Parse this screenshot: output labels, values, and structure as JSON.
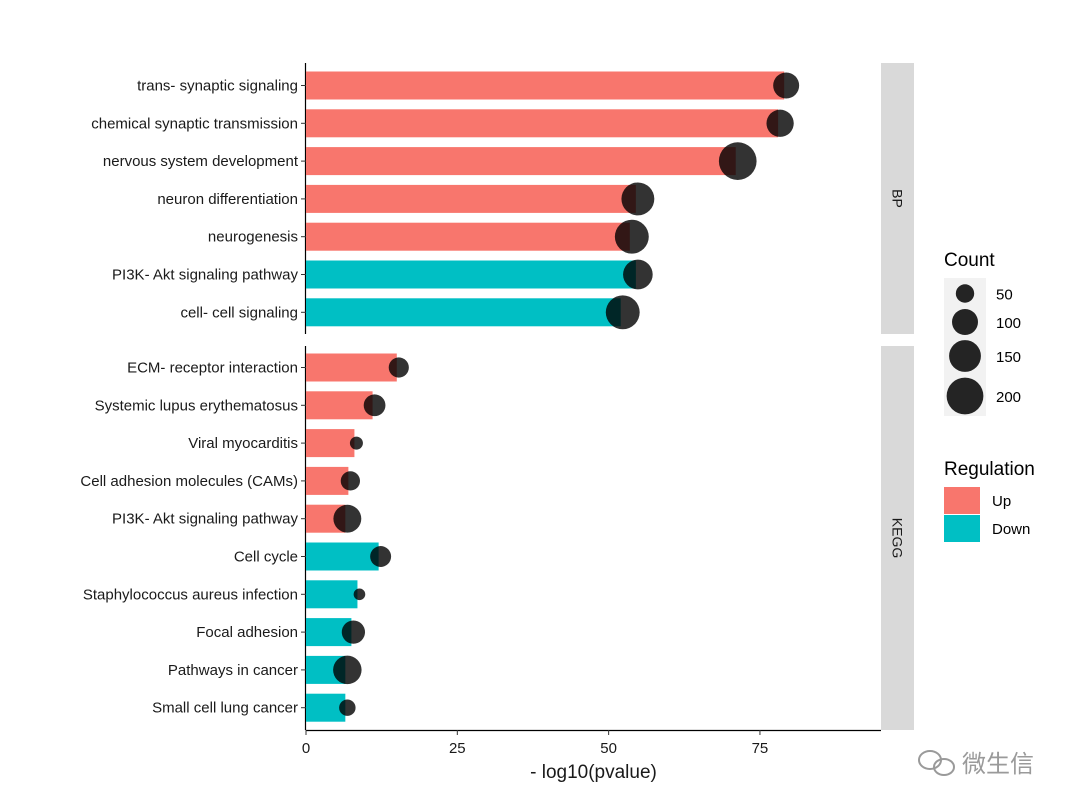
{
  "chart_data": {
    "type": "bar",
    "xlabel": "- log10(pvalue)",
    "xlim": [
      0,
      95
    ],
    "xticks": [
      0,
      25,
      50,
      75
    ],
    "colors": {
      "Up": "#F8766D",
      "Down": "#00BFC4",
      "point": "#000000",
      "strip": "#D9D9D9"
    },
    "facets": [
      {
        "name": "BP",
        "rows": [
          {
            "term": "trans- synaptic signaling",
            "value": 79,
            "count": 100,
            "regulation": "Up"
          },
          {
            "term": "chemical synaptic transmission",
            "value": 78,
            "count": 110,
            "regulation": "Up"
          },
          {
            "term": "nervous system development",
            "value": 71,
            "count": 210,
            "regulation": "Up"
          },
          {
            "term": "neuron differentiation",
            "value": 54.5,
            "count": 160,
            "regulation": "Up"
          },
          {
            "term": "neurogenesis",
            "value": 53.5,
            "count": 170,
            "regulation": "Up"
          },
          {
            "term": "PI3K- Akt signaling pathway",
            "value": 54.5,
            "count": 130,
            "regulation": "Down"
          },
          {
            "term": "cell- cell signaling",
            "value": 52,
            "count": 170,
            "regulation": "Down"
          }
        ]
      },
      {
        "name": "KEGG",
        "rows": [
          {
            "term": "ECM- receptor interaction",
            "value": 15,
            "count": 60,
            "regulation": "Up"
          },
          {
            "term": "Systemic lupus erythematosus",
            "value": 11,
            "count": 70,
            "regulation": "Up"
          },
          {
            "term": "Viral myocarditis",
            "value": 8,
            "count": 25,
            "regulation": "Up"
          },
          {
            "term": "Cell adhesion molecules (CAMs)",
            "value": 7,
            "count": 55,
            "regulation": "Up"
          },
          {
            "term": "PI3K- Akt signaling pathway",
            "value": 6.5,
            "count": 115,
            "regulation": "Up"
          },
          {
            "term": "Cell cycle",
            "value": 12,
            "count": 65,
            "regulation": "Down"
          },
          {
            "term": "Staphylococcus aureus infection",
            "value": 8.5,
            "count": 20,
            "regulation": "Down"
          },
          {
            "term": "Focal adhesion",
            "value": 7.5,
            "count": 80,
            "regulation": "Down"
          },
          {
            "term": "Pathways in cancer",
            "value": 6.5,
            "count": 120,
            "regulation": "Down"
          },
          {
            "term": "Small cell lung cancer",
            "value": 6.5,
            "count": 40,
            "regulation": "Down"
          }
        ]
      }
    ],
    "legend": {
      "position": "right",
      "count_title": "Count",
      "count_breaks": [
        50,
        100,
        150,
        200
      ],
      "regulation_title": "Regulation",
      "regulation_levels": [
        "Up",
        "Down"
      ]
    }
  },
  "watermark": {
    "text": "微生信",
    "icon": "wechat-icon"
  }
}
